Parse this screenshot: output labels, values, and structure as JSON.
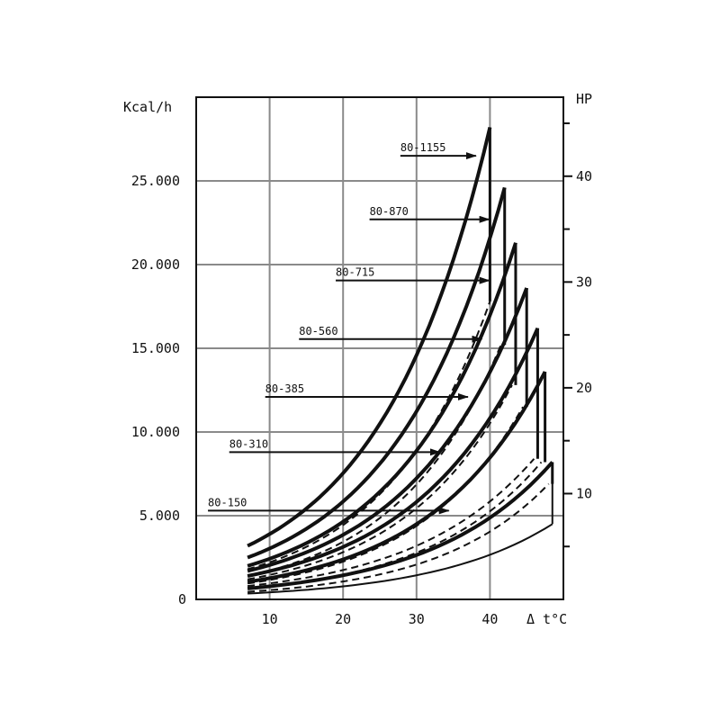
{
  "chart_data": {
    "type": "line",
    "left_axis_label": "Kcal/h",
    "right_axis_label": "HP",
    "x_axis_label": "Δ t°C",
    "x_ticks": [
      "10",
      "20",
      "30",
      "40"
    ],
    "y_ticks": [
      "0",
      "5.000",
      "10.000",
      "15.000",
      "20.000",
      "25.000"
    ],
    "y2_ticks": [
      "10",
      "20",
      "30",
      "40"
    ],
    "xlim": [
      0,
      50
    ],
    "ylim": [
      0,
      30000
    ],
    "grid": true,
    "series": [
      {
        "name": "80-1155",
        "x_range": [
          7,
          40
        ],
        "solid_kcal": [
          3200,
          28200
        ],
        "dashed_kcal": [
          1800,
          17800
        ],
        "x_dashed_end": 40
      },
      {
        "name": "80-870",
        "x_range": [
          7,
          42
        ],
        "solid_kcal": [
          2500,
          24600
        ],
        "dashed_kcal": [
          1400,
          15200
        ],
        "x_dashed_end": 41.5
      },
      {
        "name": "80-715",
        "x_range": [
          7,
          43.5
        ],
        "solid_kcal": [
          2000,
          21300
        ],
        "dashed_kcal": [
          1200,
          12800
        ],
        "x_dashed_end": 43
      },
      {
        "name": "80-560",
        "x_range": [
          7,
          45
        ],
        "solid_kcal": [
          1700,
          18600
        ],
        "dashed_kcal": [
          950,
          11500
        ],
        "x_dashed_end": 44.5
      },
      {
        "name": "80-385",
        "x_range": [
          7,
          46.5
        ],
        "solid_kcal": [
          1400,
          16200
        ],
        "dashed_kcal": [
          800,
          8400
        ],
        "x_dashed_end": 46
      },
      {
        "name": "80-310",
        "x_range": [
          7,
          47.5
        ],
        "solid_kcal": [
          1050,
          13600
        ],
        "dashed_kcal": [
          650,
          8200
        ],
        "x_dashed_end": 47
      },
      {
        "name": "80-150",
        "x_range": [
          7,
          48.5
        ],
        "solid_kcal": [
          650,
          8200
        ],
        "dashed_kcal": [
          450,
          6900
        ],
        "x_dashed_end": 48,
        "base_kcal": [
          350,
          4500
        ]
      }
    ],
    "label_arrows": [
      {
        "name": "80-1155",
        "label_x": 27.8,
        "arrow_to_x": 38.1,
        "y": 26500
      },
      {
        "name": "80-870",
        "label_x": 23.6,
        "arrow_to_x": 39.9,
        "y": 22700
      },
      {
        "name": "80-715",
        "label_x": 19.0,
        "arrow_to_x": 39.9,
        "y": 19050
      },
      {
        "name": "80-560",
        "label_x": 14.0,
        "arrow_to_x": 38.9,
        "y": 15550
      },
      {
        "name": "80-385",
        "label_x": 9.4,
        "arrow_to_x": 37.0,
        "y": 12100
      },
      {
        "name": "80-310",
        "label_x": 4.5,
        "arrow_to_x": 33.2,
        "y": 8800
      },
      {
        "name": "80-150",
        "label_x": 1.6,
        "arrow_to_x": 34.4,
        "y": 5300
      }
    ]
  }
}
